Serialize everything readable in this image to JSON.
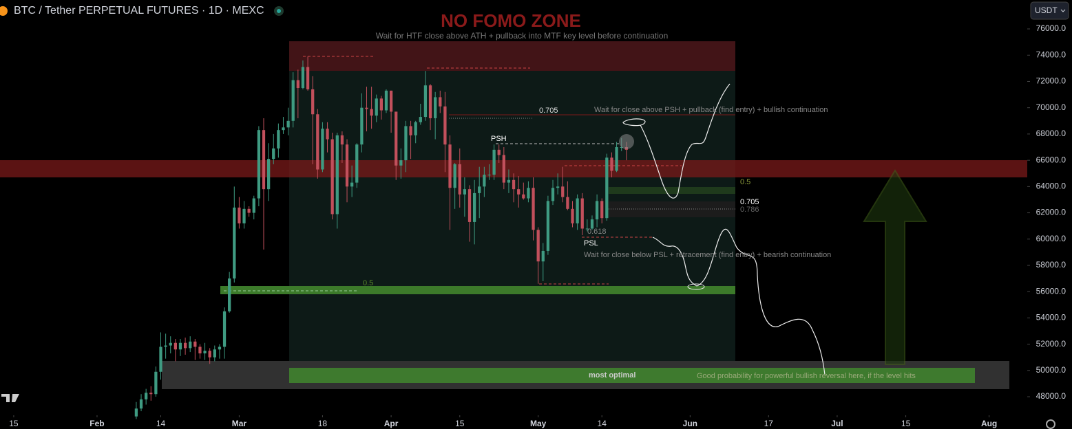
{
  "chart_data": {
    "type": "candlestick",
    "title": "BTC / Tether PERPETUAL FUTURES · 1D · MEXC",
    "quote": "USDT",
    "up_color": "#3f9b82",
    "down_color": "#c2505c",
    "xlim": [
      11.2,
      220.5
    ],
    "ylim": [
      46800,
      78200
    ],
    "xticks": [
      {
        "value": 14,
        "label": "15"
      },
      {
        "value": 31,
        "label": "Feb"
      },
      {
        "value": 44,
        "label": "14"
      },
      {
        "value": 60,
        "label": "Mar"
      },
      {
        "value": 77,
        "label": "18"
      },
      {
        "value": 91,
        "label": "Apr"
      },
      {
        "value": 105,
        "label": "15"
      },
      {
        "value": 121,
        "label": "May"
      },
      {
        "value": 134,
        "label": "14"
      },
      {
        "value": 152,
        "label": "Jun"
      },
      {
        "value": 168,
        "label": "17"
      },
      {
        "value": 182,
        "label": "Jul"
      },
      {
        "value": 196,
        "label": "15"
      },
      {
        "value": 213,
        "label": "Aug"
      }
    ],
    "yticks": [
      {
        "value": 48000,
        "label": "48000.0"
      },
      {
        "value": 50000,
        "label": "50000.0"
      },
      {
        "value": 52000,
        "label": "52000.0"
      },
      {
        "value": 54000,
        "label": "54000.0"
      },
      {
        "value": 56000,
        "label": "56000.0"
      },
      {
        "value": 58000,
        "label": "58000.0"
      },
      {
        "value": 60000,
        "label": "60000.0"
      },
      {
        "value": 62000,
        "label": "62000.0"
      },
      {
        "value": 64000,
        "label": "64000.0"
      },
      {
        "value": 66000,
        "label": "66000.0"
      },
      {
        "value": 68000,
        "label": "68000.0"
      },
      {
        "value": 70000,
        "label": "70000.0"
      },
      {
        "value": 72000,
        "label": "72000.0"
      },
      {
        "value": 74000,
        "label": "74000.0"
      },
      {
        "value": 76000,
        "label": "76000.0"
      }
    ],
    "x": [
      39,
      40,
      41,
      42,
      43,
      44,
      45,
      46,
      47,
      48,
      49,
      50,
      51,
      52,
      53,
      54,
      55,
      56,
      57,
      58,
      59,
      60,
      61,
      62,
      63,
      64,
      65,
      66,
      67,
      68,
      69,
      70,
      71,
      72,
      73,
      74,
      75,
      76,
      77,
      78,
      79,
      80,
      81,
      82,
      83,
      84,
      85,
      86,
      87,
      88,
      89,
      90,
      91,
      92,
      93,
      94,
      95,
      96,
      97,
      98,
      99,
      100,
      101,
      102,
      103,
      104,
      105,
      106,
      107,
      108,
      109,
      110,
      111,
      112,
      113,
      114,
      115,
      116,
      117,
      118,
      119,
      120,
      121,
      122,
      123,
      124,
      125,
      126,
      127,
      128,
      129,
      130,
      131,
      132,
      133,
      134,
      135,
      136,
      137,
      138,
      139
    ],
    "ohlc": [
      [
        46500,
        47600,
        46300,
        47100
      ],
      [
        47100,
        48200,
        46900,
        47800
      ],
      [
        47800,
        48600,
        47400,
        48300
      ],
      [
        48300,
        48800,
        47700,
        48200
      ],
      [
        48200,
        50300,
        48000,
        49900
      ],
      [
        49900,
        52900,
        49300,
        51800
      ],
      [
        51800,
        52800,
        50900,
        51900
      ],
      [
        51900,
        52600,
        51300,
        52100
      ],
      [
        52100,
        52400,
        50700,
        51600
      ],
      [
        51600,
        52400,
        51100,
        52100
      ],
      [
        52100,
        52500,
        51200,
        51700
      ],
      [
        51700,
        52600,
        51400,
        52200
      ],
      [
        52200,
        52400,
        50800,
        51800
      ],
      [
        51800,
        52000,
        50900,
        51300
      ],
      [
        51300,
        52100,
        50800,
        51500
      ],
      [
        51500,
        51700,
        50500,
        51000
      ],
      [
        51000,
        51900,
        50700,
        51600
      ],
      [
        51600,
        52000,
        50900,
        51800
      ],
      [
        51800,
        54800,
        50900,
        54500
      ],
      [
        54500,
        57500,
        54400,
        57000
      ],
      [
        57000,
        64000,
        56700,
        62400
      ],
      [
        62400,
        63200,
        60800,
        61200
      ],
      [
        61200,
        62900,
        60800,
        62300
      ],
      [
        62300,
        62500,
        61700,
        62000
      ],
      [
        62000,
        63300,
        61500,
        63100
      ],
      [
        63100,
        68600,
        62500,
        68300
      ],
      [
        68300,
        69200,
        59200,
        63800
      ],
      [
        63800,
        67300,
        62900,
        66100
      ],
      [
        66100,
        68000,
        65700,
        66900
      ],
      [
        66900,
        68800,
        66200,
        68300
      ],
      [
        68300,
        69300,
        68000,
        68500
      ],
      [
        68500,
        70000,
        67900,
        69000
      ],
      [
        69000,
        72700,
        68500,
        72100
      ],
      [
        72100,
        72900,
        69200,
        71500
      ],
      [
        71500,
        73600,
        71400,
        73100
      ],
      [
        73100,
        73900,
        71300,
        71400
      ],
      [
        71400,
        72400,
        65700,
        69500
      ],
      [
        69500,
        69900,
        64600,
        65300
      ],
      [
        65300,
        68900,
        65100,
        68400
      ],
      [
        68400,
        68900,
        66600,
        67600
      ],
      [
        67600,
        68100,
        61500,
        61900
      ],
      [
        61900,
        68100,
        60800,
        67900
      ],
      [
        67900,
        68200,
        65800,
        67200
      ],
      [
        67200,
        67600,
        62800,
        64000
      ],
      [
        64000,
        65600,
        63200,
        64300
      ],
      [
        64300,
        67300,
        63900,
        67200
      ],
      [
        67200,
        71100,
        66600,
        70000
      ],
      [
        70000,
        71600,
        68200,
        69900
      ],
      [
        69900,
        71600,
        68400,
        69400
      ],
      [
        69400,
        71000,
        68900,
        70700
      ],
      [
        70700,
        70900,
        69100,
        69800
      ],
      [
        69800,
        71400,
        69600,
        71300
      ],
      [
        71300,
        71300,
        68100,
        69700
      ],
      [
        69700,
        69700,
        64500,
        65600
      ],
      [
        65600,
        66900,
        64600,
        66000
      ],
      [
        66000,
        69000,
        65100,
        68600
      ],
      [
        68600,
        69000,
        66100,
        67900
      ],
      [
        67900,
        69000,
        67300,
        68900
      ],
      [
        68900,
        70300,
        68700,
        69300
      ],
      [
        69300,
        72800,
        69000,
        71700
      ],
      [
        71700,
        71800,
        68300,
        69200
      ],
      [
        69200,
        71200,
        67600,
        70800
      ],
      [
        70800,
        71300,
        69600,
        70100
      ],
      [
        70100,
        71200,
        65100,
        67200
      ],
      [
        67200,
        67900,
        60700,
        63900
      ],
      [
        63900,
        65800,
        62300,
        65700
      ],
      [
        65700,
        66900,
        62400,
        63400
      ],
      [
        63400,
        64700,
        61700,
        63800
      ],
      [
        63800,
        64100,
        59800,
        61300
      ],
      [
        61300,
        64500,
        59600,
        63500
      ],
      [
        63500,
        65500,
        61600,
        64000
      ],
      [
        64000,
        65500,
        63200,
        64900
      ],
      [
        64900,
        65700,
        64500,
        64900
      ],
      [
        64900,
        67200,
        64500,
        66800
      ],
      [
        66800,
        67200,
        65800,
        66400
      ],
      [
        66400,
        67000,
        63800,
        64300
      ],
      [
        64300,
        65300,
        63500,
        64500
      ],
      [
        64500,
        65000,
        62800,
        63800
      ],
      [
        63800,
        64800,
        62400,
        63400
      ],
      [
        63400,
        64300,
        63000,
        63100
      ],
      [
        63100,
        64400,
        62800,
        63900
      ],
      [
        63900,
        64700,
        59900,
        60700
      ],
      [
        60700,
        60900,
        56600,
        58300
      ],
      [
        58300,
        59700,
        56800,
        59100
      ],
      [
        59100,
        63300,
        58800,
        62900
      ],
      [
        62900,
        64500,
        62600,
        63900
      ],
      [
        63900,
        65000,
        63400,
        64000
      ],
      [
        64000,
        65500,
        62800,
        63200
      ],
      [
        63200,
        64400,
        62200,
        62300
      ],
      [
        62300,
        62900,
        60900,
        61200
      ],
      [
        61200,
        63400,
        60700,
        63100
      ],
      [
        63100,
        63500,
        60300,
        60800
      ],
      [
        60800,
        61500,
        60600,
        60800
      ],
      [
        60800,
        61800,
        60700,
        61500
      ],
      [
        61500,
        63400,
        60900,
        62900
      ],
      [
        62900,
        63100,
        61200,
        61600
      ],
      [
        61600,
        66500,
        61400,
        66200
      ],
      [
        66200,
        66600,
        64700,
        65200
      ],
      [
        65200,
        67400,
        65100,
        67000
      ],
      [
        67000,
        67700,
        66700,
        67000
      ],
      [
        67000,
        67400,
        66000,
        66800
      ]
    ],
    "annotations": [
      "NO FOMO ZONE",
      "Wait for HTF close above ATH + pullback into MTF key level before continuation",
      "0.705",
      "Wait for close above PSH + pullback (find entry) + bullish continuation",
      "PSH",
      "0.5",
      "0.705",
      "0.786",
      "0.618",
      "PSL",
      "Wait for close below PSL + retracement (find entry) + bearish continuation",
      "0.5",
      "most optimal",
      "Good probability for powerful bullish reversal here, if the level hits"
    ]
  }
}
